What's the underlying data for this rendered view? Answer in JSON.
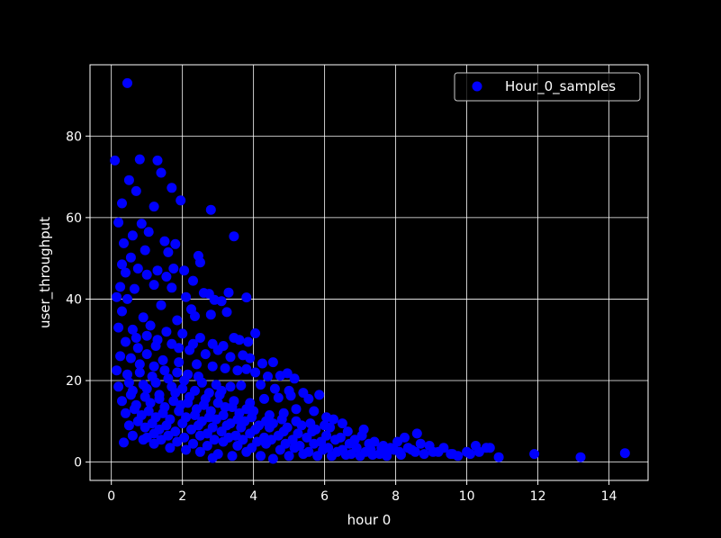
{
  "chart_data": {
    "type": "scatter",
    "xlabel": "hour 0",
    "ylabel": "user_throughput",
    "xlim": [
      -0.6,
      15.1
    ],
    "ylim": [
      -4.5,
      97.5
    ],
    "xticks": [
      0,
      2,
      4,
      6,
      8,
      10,
      12,
      14
    ],
    "yticks": [
      0,
      20,
      40,
      60,
      80
    ],
    "grid": true,
    "legend_position": "top-right",
    "background_color": "#000000",
    "text_color": "#ffffff",
    "series": [
      {
        "name": "Hour_0_samples",
        "color": "#0000ff",
        "points": [
          [
            0.45,
            93.0
          ],
          [
            0.1,
            74.0
          ],
          [
            0.8,
            74.3
          ],
          [
            1.3,
            74.0
          ],
          [
            1.4,
            71.0
          ],
          [
            0.5,
            69.2
          ],
          [
            1.7,
            67.3
          ],
          [
            0.7,
            66.5
          ],
          [
            0.3,
            63.5
          ],
          [
            1.2,
            62.7
          ],
          [
            1.95,
            64.2
          ],
          [
            2.8,
            61.9
          ],
          [
            0.2,
            58.8
          ],
          [
            0.85,
            58.5
          ],
          [
            0.6,
            55.6
          ],
          [
            1.05,
            56.5
          ],
          [
            0.35,
            53.7
          ],
          [
            1.5,
            54.2
          ],
          [
            1.8,
            53.5
          ],
          [
            3.45,
            55.4
          ],
          [
            0.95,
            52.0
          ],
          [
            1.6,
            51.5
          ],
          [
            2.45,
            50.6
          ],
          [
            2.5,
            49.0
          ],
          [
            0.3,
            48.5
          ],
          [
            0.55,
            50.2
          ],
          [
            0.75,
            47.5
          ],
          [
            1.3,
            47.0
          ],
          [
            1.75,
            47.5
          ],
          [
            2.05,
            47.0
          ],
          [
            0.4,
            46.5
          ],
          [
            1.0,
            46.0
          ],
          [
            1.55,
            45.5
          ],
          [
            2.3,
            44.5
          ],
          [
            1.2,
            43.5
          ],
          [
            0.25,
            43.0
          ],
          [
            0.65,
            42.5
          ],
          [
            1.7,
            42.8
          ],
          [
            2.6,
            41.5
          ],
          [
            3.3,
            41.6
          ],
          [
            3.8,
            40.4
          ],
          [
            2.1,
            40.5
          ],
          [
            2.75,
            41.3
          ],
          [
            3.1,
            39.5
          ],
          [
            2.9,
            39.8
          ],
          [
            0.15,
            40.5
          ],
          [
            0.45,
            40.0
          ],
          [
            1.4,
            38.5
          ],
          [
            2.25,
            37.5
          ],
          [
            2.8,
            36.2
          ],
          [
            3.25,
            36.8
          ],
          [
            2.35,
            35.8
          ],
          [
            0.3,
            37.0
          ],
          [
            0.9,
            35.5
          ],
          [
            1.85,
            34.8
          ],
          [
            0.2,
            33.0
          ],
          [
            0.6,
            32.5
          ],
          [
            1.1,
            33.5
          ],
          [
            1.55,
            32.0
          ],
          [
            2.0,
            31.5
          ],
          [
            2.5,
            30.5
          ],
          [
            3.45,
            30.5
          ],
          [
            3.6,
            30.0
          ],
          [
            3.85,
            29.5
          ],
          [
            4.05,
            31.6
          ],
          [
            2.85,
            29.0
          ],
          [
            3.15,
            28.5
          ],
          [
            0.4,
            29.5
          ],
          [
            1.7,
            29.0
          ],
          [
            0.75,
            28.0
          ],
          [
            1.25,
            28.5
          ],
          [
            2.2,
            27.5
          ],
          [
            2.65,
            26.5
          ],
          [
            3.0,
            27.5
          ],
          [
            3.35,
            25.8
          ],
          [
            3.7,
            26.2
          ],
          [
            3.9,
            25.5
          ],
          [
            4.25,
            24.2
          ],
          [
            4.55,
            24.5
          ],
          [
            0.25,
            26.0
          ],
          [
            0.55,
            25.5
          ],
          [
            1.0,
            26.5
          ],
          [
            1.45,
            25.0
          ],
          [
            1.9,
            24.5
          ],
          [
            2.4,
            24.0
          ],
          [
            2.85,
            23.5
          ],
          [
            3.2,
            23.0
          ],
          [
            3.55,
            22.5
          ],
          [
            3.8,
            22.8
          ],
          [
            4.05,
            22.0
          ],
          [
            4.4,
            21.0
          ],
          [
            4.75,
            21.2
          ],
          [
            4.95,
            21.8
          ],
          [
            5.15,
            20.5
          ],
          [
            0.15,
            22.5
          ],
          [
            0.45,
            21.5
          ],
          [
            0.8,
            22.0
          ],
          [
            1.15,
            21.0
          ],
          [
            1.6,
            20.5
          ],
          [
            2.05,
            20.0
          ],
          [
            2.55,
            19.5
          ],
          [
            2.95,
            19.0
          ],
          [
            3.35,
            18.5
          ],
          [
            3.65,
            18.8
          ],
          [
            4.2,
            19.0
          ],
          [
            4.6,
            18.0
          ],
          [
            5.0,
            17.5
          ],
          [
            5.4,
            17.0
          ],
          [
            0.2,
            18.5
          ],
          [
            0.6,
            17.5
          ],
          [
            1.0,
            18.0
          ],
          [
            1.35,
            16.5
          ],
          [
            1.8,
            17.0
          ],
          [
            2.2,
            16.0
          ],
          [
            2.65,
            15.5
          ],
          [
            3.05,
            16.5
          ],
          [
            3.45,
            15.0
          ],
          [
            3.9,
            14.5
          ],
          [
            4.3,
            15.5
          ],
          [
            4.7,
            15.8
          ],
          [
            5.05,
            16.3
          ],
          [
            5.55,
            15.5
          ],
          [
            5.85,
            16.5
          ],
          [
            0.3,
            15.0
          ],
          [
            0.7,
            14.0
          ],
          [
            1.1,
            14.5
          ],
          [
            1.5,
            13.5
          ],
          [
            1.95,
            14.0
          ],
          [
            2.4,
            13.0
          ],
          [
            2.8,
            12.5
          ],
          [
            3.2,
            13.5
          ],
          [
            3.6,
            12.0
          ],
          [
            4.0,
            12.5
          ],
          [
            4.45,
            11.5
          ],
          [
            4.85,
            12.0
          ],
          [
            5.2,
            13.0
          ],
          [
            5.7,
            12.5
          ],
          [
            6.05,
            11.0
          ],
          [
            6.25,
            10.5
          ],
          [
            0.4,
            12.0
          ],
          [
            0.85,
            11.5
          ],
          [
            1.25,
            11.0
          ],
          [
            1.65,
            10.5
          ],
          [
            2.1,
            11.0
          ],
          [
            2.55,
            10.0
          ],
          [
            2.95,
            10.5
          ],
          [
            3.35,
            9.5
          ],
          [
            3.75,
            10.0
          ],
          [
            4.15,
            9.0
          ],
          [
            4.55,
            9.5
          ],
          [
            4.95,
            8.5
          ],
          [
            5.35,
            9.0
          ],
          [
            5.75,
            8.0
          ],
          [
            6.15,
            8.5
          ],
          [
            6.5,
            9.5
          ],
          [
            6.65,
            7.5
          ],
          [
            0.5,
            9.0
          ],
          [
            0.95,
            8.5
          ],
          [
            1.35,
            8.0
          ],
          [
            1.8,
            7.5
          ],
          [
            2.25,
            8.0
          ],
          [
            2.7,
            7.0
          ],
          [
            3.1,
            7.5
          ],
          [
            3.5,
            6.5
          ],
          [
            3.9,
            7.0
          ],
          [
            4.3,
            6.0
          ],
          [
            4.7,
            6.5
          ],
          [
            5.1,
            5.5
          ],
          [
            5.5,
            6.0
          ],
          [
            5.9,
            5.0
          ],
          [
            6.3,
            5.5
          ],
          [
            6.7,
            4.5
          ],
          [
            7.05,
            6.5
          ],
          [
            7.1,
            8.0
          ],
          [
            7.4,
            5.0
          ],
          [
            7.65,
            4.0
          ],
          [
            7.85,
            3.5
          ],
          [
            0.35,
            4.8
          ],
          [
            0.6,
            6.5
          ],
          [
            1.0,
            6.0
          ],
          [
            1.4,
            5.5
          ],
          [
            1.85,
            5.0
          ],
          [
            2.3,
            4.5
          ],
          [
            2.7,
            4.0
          ],
          [
            3.15,
            5.0
          ],
          [
            3.55,
            4.0
          ],
          [
            3.95,
            3.5
          ],
          [
            4.35,
            4.5
          ],
          [
            4.75,
            3.0
          ],
          [
            5.15,
            3.5
          ],
          [
            5.55,
            2.5
          ],
          [
            5.95,
            3.0
          ],
          [
            6.35,
            2.5
          ],
          [
            6.75,
            2.0
          ],
          [
            7.15,
            2.5
          ],
          [
            7.55,
            2.0
          ],
          [
            7.95,
            3.0
          ],
          [
            8.05,
            5.0
          ],
          [
            8.25,
            6.0
          ],
          [
            8.35,
            3.5
          ],
          [
            8.55,
            2.5
          ],
          [
            8.6,
            7.0
          ],
          [
            8.7,
            4.5
          ],
          [
            8.95,
            4.0
          ],
          [
            9.05,
            2.5
          ],
          [
            9.35,
            3.5
          ],
          [
            9.55,
            2.0
          ],
          [
            9.75,
            1.5
          ],
          [
            10.0,
            2.5
          ],
          [
            10.25,
            4.0
          ],
          [
            10.35,
            2.5
          ],
          [
            10.55,
            3.5
          ],
          [
            10.65,
            3.5
          ],
          [
            10.9,
            1.2
          ],
          [
            11.9,
            2.0
          ],
          [
            13.2,
            1.2
          ],
          [
            14.45,
            2.2
          ],
          [
            2.85,
            1.0
          ],
          [
            4.55,
            0.8
          ],
          [
            0.9,
            5.5
          ],
          [
            1.2,
            4.5
          ],
          [
            1.65,
            3.5
          ],
          [
            2.1,
            3.0
          ],
          [
            2.5,
            2.5
          ],
          [
            3.0,
            2.0
          ],
          [
            3.4,
            1.5
          ],
          [
            3.8,
            2.5
          ],
          [
            4.2,
            1.5
          ],
          [
            5.0,
            1.5
          ],
          [
            5.4,
            2.0
          ],
          [
            5.8,
            1.5
          ],
          [
            6.2,
            1.5
          ],
          [
            6.6,
            1.8
          ],
          [
            7.0,
            1.5
          ],
          [
            7.35,
            1.8
          ],
          [
            7.75,
            1.5
          ],
          [
            8.15,
            1.8
          ],
          [
            0.7,
            30.5
          ],
          [
            1.0,
            31.0
          ],
          [
            1.3,
            30.0
          ],
          [
            1.9,
            28.0
          ],
          [
            2.3,
            29.0
          ],
          [
            0.8,
            24.0
          ],
          [
            1.2,
            23.5
          ],
          [
            1.5,
            22.5
          ],
          [
            1.85,
            22.0
          ],
          [
            2.15,
            21.5
          ],
          [
            2.45,
            21.0
          ],
          [
            0.5,
            19.5
          ],
          [
            0.9,
            19.0
          ],
          [
            1.25,
            19.5
          ],
          [
            1.7,
            18.5
          ],
          [
            2.0,
            18.0
          ],
          [
            2.35,
            17.5
          ],
          [
            2.75,
            17.0
          ],
          [
            3.1,
            17.5
          ],
          [
            0.55,
            16.5
          ],
          [
            0.95,
            16.0
          ],
          [
            1.35,
            15.5
          ],
          [
            1.75,
            15.0
          ],
          [
            2.15,
            14.5
          ],
          [
            2.6,
            14.0
          ],
          [
            3.0,
            14.5
          ],
          [
            3.4,
            13.5
          ],
          [
            3.8,
            13.0
          ],
          [
            0.65,
            13.0
          ],
          [
            1.05,
            12.5
          ],
          [
            1.45,
            12.0
          ],
          [
            1.9,
            12.5
          ],
          [
            2.35,
            11.5
          ],
          [
            2.75,
            11.0
          ],
          [
            3.15,
            11.5
          ],
          [
            3.55,
            10.5
          ],
          [
            3.95,
            11.0
          ],
          [
            4.35,
            10.0
          ],
          [
            4.8,
            10.5
          ],
          [
            5.2,
            10.0
          ],
          [
            5.6,
            9.5
          ],
          [
            6.0,
            9.0
          ],
          [
            0.75,
            10.0
          ],
          [
            1.15,
            9.5
          ],
          [
            1.55,
            9.0
          ],
          [
            2.0,
            9.5
          ],
          [
            2.45,
            9.0
          ],
          [
            2.85,
            8.5
          ],
          [
            3.25,
            9.0
          ],
          [
            3.65,
            8.5
          ],
          [
            4.05,
            8.0
          ],
          [
            4.45,
            8.5
          ],
          [
            4.85,
            7.5
          ],
          [
            5.25,
            7.0
          ],
          [
            5.65,
            7.5
          ],
          [
            6.05,
            6.5
          ],
          [
            6.45,
            6.0
          ],
          [
            6.85,
            5.5
          ],
          [
            7.25,
            4.5
          ],
          [
            7.6,
            3.5
          ],
          [
            1.2,
            7.0
          ],
          [
            1.6,
            6.5
          ],
          [
            2.05,
            6.0
          ],
          [
            2.5,
            6.5
          ],
          [
            2.9,
            5.5
          ],
          [
            3.3,
            6.0
          ],
          [
            3.7,
            5.5
          ],
          [
            4.1,
            5.0
          ],
          [
            4.5,
            5.5
          ],
          [
            4.9,
            4.5
          ],
          [
            5.3,
            4.0
          ],
          [
            5.7,
            4.5
          ],
          [
            6.1,
            3.5
          ],
          [
            6.5,
            3.0
          ],
          [
            6.9,
            3.5
          ],
          [
            7.3,
            3.0
          ],
          [
            7.7,
            2.5
          ],
          [
            8.1,
            2.5
          ],
          [
            8.45,
            3.0
          ],
          [
            8.8,
            2.0
          ],
          [
            9.2,
            2.5
          ],
          [
            9.6,
            2.0
          ],
          [
            10.1,
            2.0
          ]
        ]
      }
    ]
  }
}
